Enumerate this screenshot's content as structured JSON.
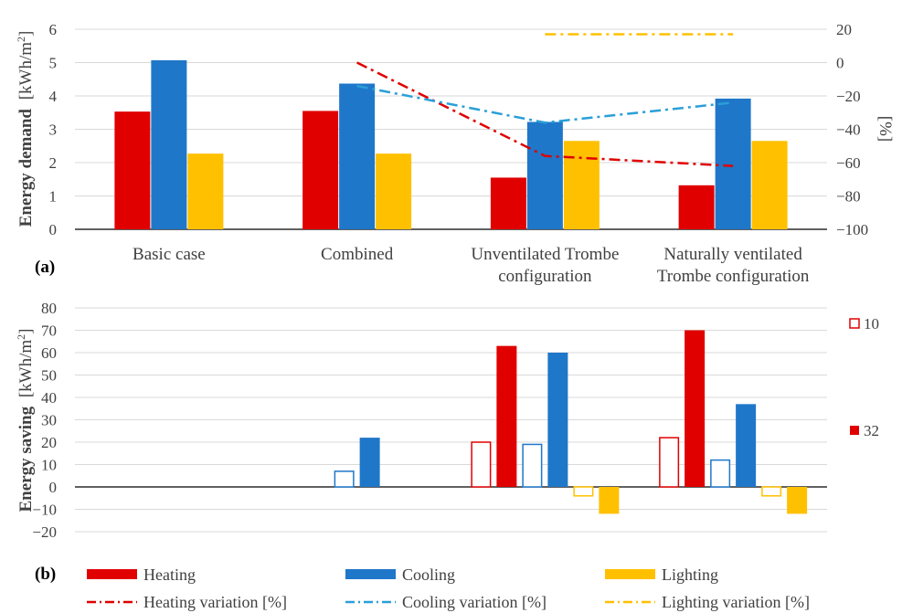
{
  "chart_data": [
    {
      "type": "bar",
      "panel_label": "(a)",
      "categories": [
        "Basic case",
        "Combined",
        "Unventilated Trombe configuration",
        "Naturally ventilated Trombe configuration"
      ],
      "category_lines": [
        [
          "Basic case"
        ],
        [
          "Combined"
        ],
        [
          "Unventilated Trombe",
          "configuration"
        ],
        [
          "Naturally ventilated",
          "Trombe configuration"
        ]
      ],
      "ylabel_bold": "Energy demand",
      "ylabel_unit": "[kWh/m",
      "ylabel_sup": "2",
      "ylabel_close": "]",
      "y2label": "[%]",
      "ylim": [
        0,
        6
      ],
      "y_ticks": [
        0,
        1,
        2,
        3,
        4,
        5,
        6
      ],
      "y2lim": [
        -100,
        20
      ],
      "y2_ticks": [
        "20",
        "0",
        "−20",
        "−40",
        "−60",
        "−80",
        "−100"
      ],
      "y2_tick_values": [
        20,
        0,
        -20,
        -40,
        -60,
        -80,
        -100
      ],
      "series": [
        {
          "name": "Heating",
          "values": [
            3.53,
            3.55,
            1.55,
            1.32
          ],
          "color": "#e00000"
        },
        {
          "name": "Cooling",
          "values": [
            5.07,
            4.37,
            3.22,
            3.92
          ],
          "color": "#1f77c9"
        },
        {
          "name": "Lighting",
          "values": [
            2.27,
            2.27,
            2.65,
            2.65
          ],
          "color": "#ffc000"
        }
      ],
      "line_series": [
        {
          "name": "Heating variation [%]",
          "axis": "right",
          "values": [
            null,
            0,
            -56,
            -62
          ],
          "color": "#e00000"
        },
        {
          "name": "Cooling variation [%]",
          "axis": "right",
          "values": [
            null,
            -14,
            -36,
            -24
          ],
          "color": "#2a9fd8"
        },
        {
          "name": "Lighting variation [%]",
          "axis": "right",
          "values": [
            null,
            null,
            17,
            17
          ],
          "color": "#ffc000"
        }
      ]
    },
    {
      "type": "bar",
      "panel_label": "(b)",
      "categories": [
        "Basic case",
        "Combined",
        "Unventilated Trombe configuration",
        "Naturally ventilated Trombe configuration"
      ],
      "ylabel_bold": "Energy saving",
      "ylabel_unit": "[kWh/m",
      "ylabel_sup": "2",
      "ylabel_close": "]",
      "ylim": [
        -20,
        80
      ],
      "y_ticks": [
        -20,
        -10,
        0,
        10,
        20,
        30,
        40,
        50,
        60,
        70,
        80
      ],
      "y_tick_labels": [
        "−20",
        "−10",
        "0",
        "10",
        "20",
        "30",
        "40",
        "50",
        "60",
        "70",
        "80"
      ],
      "series": [
        {
          "name": "Heating 10",
          "style": "outline",
          "color": "#e00000",
          "values": [
            null,
            null,
            20,
            22
          ]
        },
        {
          "name": "Heating 32",
          "style": "solid",
          "color": "#e00000",
          "values": [
            null,
            null,
            63,
            70
          ]
        },
        {
          "name": "Cooling 10",
          "style": "outline",
          "color": "#1f77c9",
          "values": [
            null,
            7,
            19,
            12
          ]
        },
        {
          "name": "Cooling 32",
          "style": "solid",
          "color": "#1f77c9",
          "values": [
            null,
            22,
            60,
            37
          ]
        },
        {
          "name": "Lighting 10",
          "style": "outline",
          "color": "#ffc000",
          "values": [
            null,
            null,
            -4,
            -4
          ]
        },
        {
          "name": "Lighting 32",
          "style": "solid",
          "color": "#ffc000",
          "values": [
            null,
            null,
            -12,
            -12
          ]
        }
      ],
      "side_legend": [
        {
          "label": "10",
          "style": "outline"
        },
        {
          "label": "32",
          "style": "solid"
        }
      ]
    }
  ],
  "legend": {
    "heating": "Heating",
    "cooling": "Cooling",
    "lighting": "Lighting",
    "heating_var": "Heating variation [%]",
    "cooling_var": "Cooling variation [%]",
    "lighting_var": "Lighting variation [%]"
  }
}
